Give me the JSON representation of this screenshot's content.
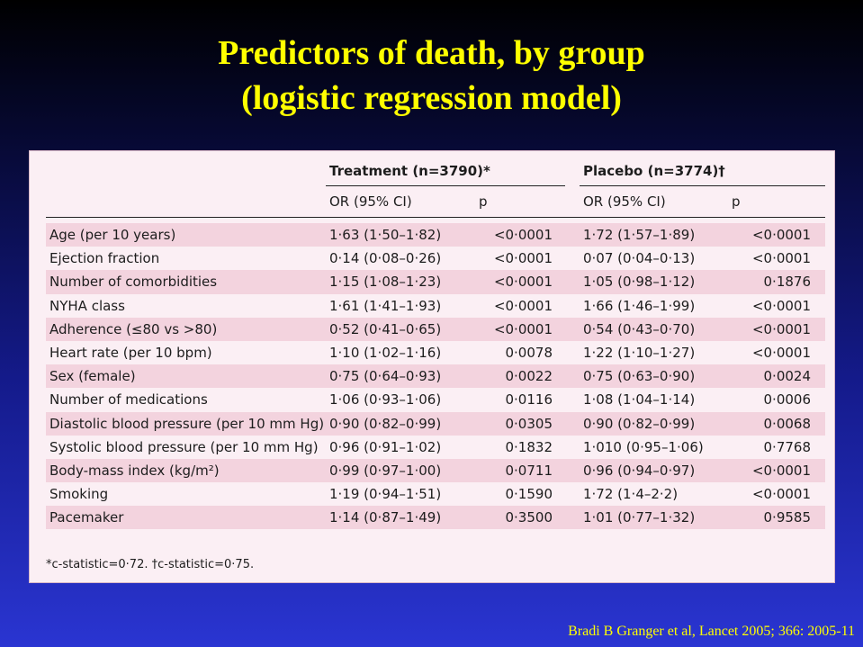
{
  "title": {
    "line1": "Predictors of death, by group",
    "line2": "(logistic regression model)"
  },
  "table": {
    "groups": {
      "treatment": "Treatment (n=3790)*",
      "placebo": "Placebo (n=3774)†"
    },
    "subheaders": {
      "or": "OR (95% CI)",
      "p": "p"
    },
    "rows": [
      {
        "label": "Age (per 10 years)",
        "t_or": "1·63 (1·50–1·82)",
        "t_p": "<0·0001",
        "p_or": "1·72 (1·57–1·89)",
        "p_p": "<0·0001"
      },
      {
        "label": "Ejection fraction",
        "t_or": "0·14 (0·08–0·26)",
        "t_p": "<0·0001",
        "p_or": "0·07 (0·04–0·13)",
        "p_p": "<0·0001"
      },
      {
        "label": "Number of comorbidities",
        "t_or": "1·15 (1·08–1·23)",
        "t_p": "<0·0001",
        "p_or": "1·05 (0·98–1·12)",
        "p_p": "0·1876"
      },
      {
        "label": "NYHA class",
        "t_or": "1·61 (1·41–1·93)",
        "t_p": "<0·0001",
        "p_or": "1·66 (1·46–1·99)",
        "p_p": "<0·0001"
      },
      {
        "label": "Adherence (≤80 vs >80)",
        "t_or": "0·52 (0·41–0·65)",
        "t_p": "<0·0001",
        "p_or": "0·54 (0·43–0·70)",
        "p_p": "<0·0001"
      },
      {
        "label": "Heart rate (per 10 bpm)",
        "t_or": "1·10 (1·02–1·16)",
        "t_p": "0·0078",
        "p_or": "1·22 (1·10–1·27)",
        "p_p": "<0·0001"
      },
      {
        "label": "Sex (female)",
        "t_or": "0·75 (0·64–0·93)",
        "t_p": "0·0022",
        "p_or": "0·75 (0·63–0·90)",
        "p_p": "0·0024"
      },
      {
        "label": "Number of medications",
        "t_or": "1·06 (0·93–1·06)",
        "t_p": "0·0116",
        "p_or": "1·08 (1·04–1·14)",
        "p_p": "0·0006"
      },
      {
        "label": "Diastolic blood pressure (per 10 mm Hg)",
        "t_or": "0·90 (0·82–0·99)",
        "t_p": "0·0305",
        "p_or": "0·90 (0·82–0·99)",
        "p_p": "0·0068"
      },
      {
        "label": "Systolic blood pressure (per 10 mm Hg)",
        "t_or": "0·96 (0·91–1·02)",
        "t_p": "0·1832",
        "p_or": "1·010 (0·95–1·06)",
        "p_p": "0·7768"
      },
      {
        "label": "Body-mass index (kg/m²)",
        "t_or": "0·99 (0·97–1·00)",
        "t_p": "0·0711",
        "p_or": "0·96 (0·94–0·97)",
        "p_p": "<0·0001"
      },
      {
        "label": "Smoking",
        "t_or": "1·19 (0·94–1·51)",
        "t_p": "0·1590",
        "p_or": "1·72 (1·4–2·2)",
        "p_p": "<0·0001"
      },
      {
        "label": "Pacemaker",
        "t_or": "1·14 (0·87–1·49)",
        "t_p": "0·3500",
        "p_or": "1·01 (0·77–1·32)",
        "p_p": "0·9585"
      }
    ],
    "footnote": "*c-statistic=0·72. †c-statistic=0·75."
  },
  "citation": "Bradi B Granger et al, Lancet 2005; 366: 2005-11",
  "colors": {
    "title": "#ffff00",
    "panel": "#fbeff4",
    "row_shade": "#f3d3de"
  }
}
